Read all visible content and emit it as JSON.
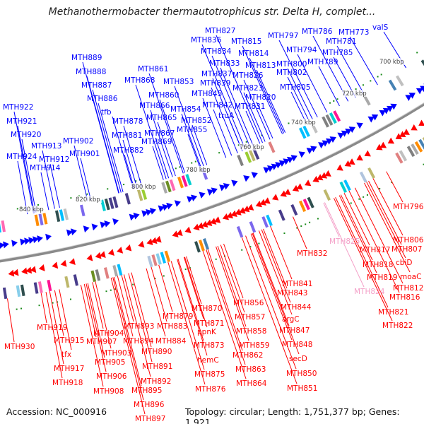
{
  "title": "Methanothermobacter thermautotrophicus str. Delta H, complet...",
  "colors": {
    "forward": "#0000ff",
    "reverse": "#ff0000",
    "pseudo": "#f4a0c8",
    "backbone": "#888888",
    "tick_dot": "#1a8a1a"
  },
  "ticks": [
    "700 kbp",
    "720 kbp",
    "740 kbp",
    "760 kbp",
    "780 kbp",
    "800 kbp",
    "820 kbp",
    "840 kbp"
  ],
  "forward_genes": [
    "MTH827",
    "MTH836",
    "MTH815",
    "MTH797",
    "MTH786",
    "MTH773",
    "valS",
    "MTH834",
    "MTH814",
    "MTH794",
    "MTH781",
    "MTH785",
    "MTH833",
    "MTH813",
    "MTH800",
    "MTH789",
    "MTH802",
    "MTH837",
    "MTH826",
    "MTH839",
    "MTH805",
    "MTH823",
    "MTH845",
    "MTH820",
    "MTH842",
    "MTH831",
    "truA",
    "MTH861",
    "MTH868",
    "MTH853",
    "MTH860",
    "MTH866",
    "MTH854",
    "MTH865",
    "MTH852",
    "MTH855",
    "MTH867",
    "MTH869",
    "MTH878",
    "MTH881",
    "MTH882",
    "MTH889",
    "MTH888",
    "MTH887",
    "MTH886",
    "tfb",
    "MTH902",
    "MTH901",
    "MTH913",
    "MTH912",
    "MTH914",
    "MTH922",
    "MTH921",
    "MTH920",
    "MTH924"
  ],
  "reverse_genes": [
    "MTH796",
    "MTH806",
    "MTH807",
    "MTH832",
    "MTH825",
    "MTH817",
    "cbiD",
    "MTH818",
    "moaC",
    "MTH819",
    "MTH812",
    "MTH824",
    "MTH816",
    "MTH821",
    "MTH822",
    "MTH841",
    "MTH843",
    "MTH844",
    "argC",
    "MTH847",
    "MTH848",
    "secD",
    "MTH850",
    "MTH851",
    "MTH856",
    "MTH857",
    "MTH858",
    "MTH859",
    "MTH862",
    "MTH863",
    "MTH864",
    "MTH870",
    "MTH871",
    "ppnK",
    "MTH873",
    "hemC",
    "MTH875",
    "MTH876",
    "MTH879",
    "MTH883",
    "MTH884",
    "MTH893",
    "MTH894",
    "MTH890",
    "MTH891",
    "MTH892",
    "MTH895",
    "MTH896",
    "MTH897",
    "MTH904",
    "MTH907",
    "MTH903",
    "MTH905",
    "MTH906",
    "MTH908",
    "MTH919",
    "MTH915",
    "tfx",
    "MTH917",
    "MTH918",
    "MTH930"
  ],
  "pseudo_genes": [
    "MTH825",
    "MTH824"
  ],
  "footer": {
    "accession": "Accession: NC_000916",
    "topology": "Topology: circular; Length: 1,751,377 bp; Genes: 1,921"
  }
}
